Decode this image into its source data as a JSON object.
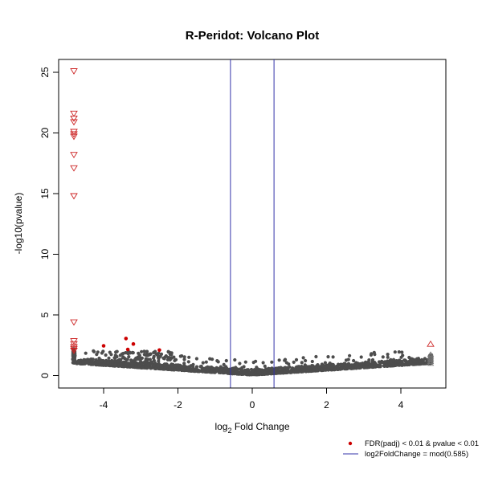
{
  "chart_data": {
    "type": "scatter",
    "title": "R-Peridot: Volcano Plot",
    "xlabel_main": "log",
    "xlabel_sub": "2",
    "xlabel_rest": " Fold Change",
    "ylabel": "-log10(pvalue)",
    "xlim": [
      -5.0,
      5.3
    ],
    "ylim": [
      -1.0,
      26.0
    ],
    "x_ticks": [
      -4,
      -2,
      0,
      2,
      4
    ],
    "x_tick_labels": [
      "-4",
      "-2",
      "0",
      "2",
      "4"
    ],
    "y_ticks": [
      0,
      5,
      10,
      15,
      20,
      25
    ],
    "y_tick_labels": [
      "0",
      "5",
      "10",
      "15",
      "20",
      "25"
    ],
    "threshold_lines": [
      -0.585,
      0.585
    ],
    "colors": {
      "points": "#4d4d4d",
      "significant": "#cc0000",
      "triangles": "#cc2222",
      "threshold": "#3333aa",
      "axis": "#000000"
    },
    "significant_points": [
      {
        "x": -4.0,
        "y": 2.45
      },
      {
        "x": -3.4,
        "y": 3.05
      },
      {
        "x": -3.35,
        "y": 2.15
      },
      {
        "x": -3.2,
        "y": 2.6
      },
      {
        "x": -2.5,
        "y": 2.1
      }
    ],
    "clipped_down_triangles": {
      "x": -4.8,
      "y": [
        25.1,
        21.6,
        21.2,
        20.9,
        20.1,
        19.9,
        19.7,
        18.2,
        17.1,
        14.8,
        4.4,
        2.85,
        2.6,
        2.35,
        2.2,
        2.05
      ]
    },
    "clipped_up_triangles": {
      "x": 4.8,
      "y": [
        2.6
      ]
    },
    "legend": {
      "position": "bottom-right",
      "items": [
        {
          "label": "FDR(padj) < 0.01 & pvalue < 0.01",
          "symbol": "point"
        },
        {
          "label": "log2FoldChange = mod(0.585)",
          "symbol": "line"
        }
      ]
    }
  }
}
